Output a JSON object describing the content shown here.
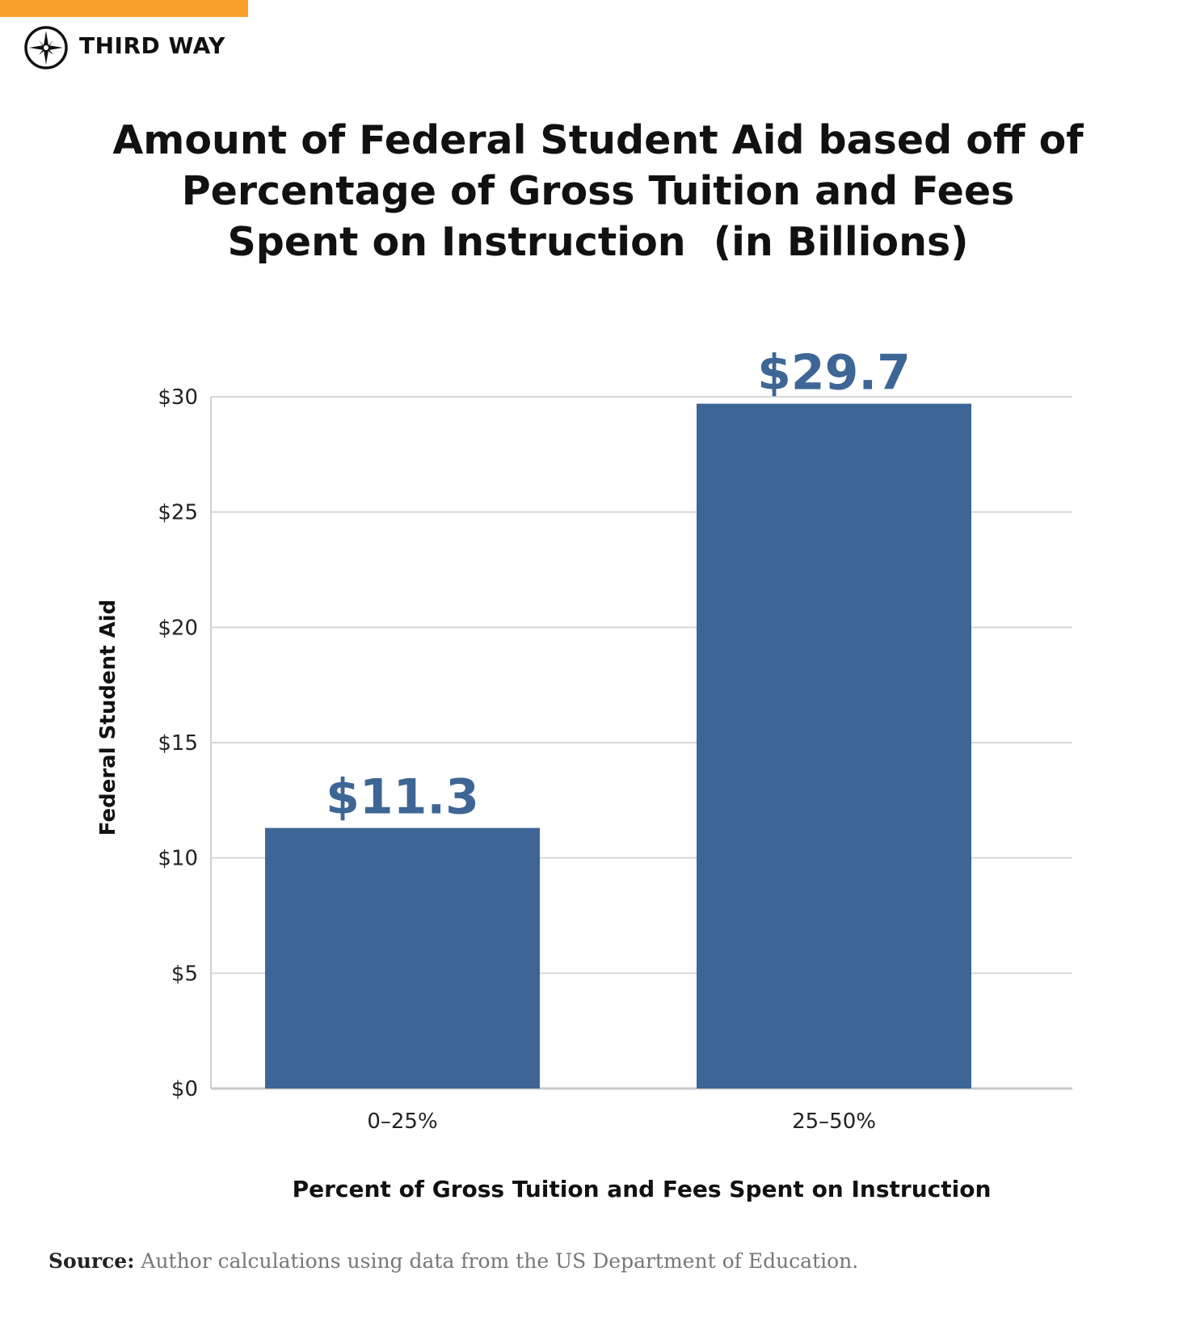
{
  "brand": {
    "name": "THIRD WAY",
    "accent_color": "#f9a12a",
    "logo_icon": "compass-star-icon"
  },
  "chart_data": {
    "type": "bar",
    "title_lines": [
      "Amount of Federal Student Aid based off of",
      "Percentage of Gross Tuition and Fees",
      "Spent on Instruction  (in Billions)"
    ],
    "categories": [
      "0–25%",
      "25–50%"
    ],
    "values": [
      11.3,
      29.7
    ],
    "data_labels": [
      "$11.3",
      "$29.7"
    ],
    "xlabel": "Percent of Gross Tuition and Fees Spent on Instruction",
    "ylabel": "Federal Student Aid",
    "ylim": [
      0,
      30
    ],
    "yticks": [
      0,
      5,
      10,
      15,
      20,
      25,
      30
    ],
    "ytick_labels": [
      "$0",
      "$5",
      "$10",
      "$15",
      "$20",
      "$25",
      "$30"
    ],
    "grid": true,
    "bar_color": "#3d6696",
    "label_color": "#3d6696"
  },
  "source": {
    "label": "Source:",
    "text": " Author calculations using data from the US Department of Education."
  }
}
